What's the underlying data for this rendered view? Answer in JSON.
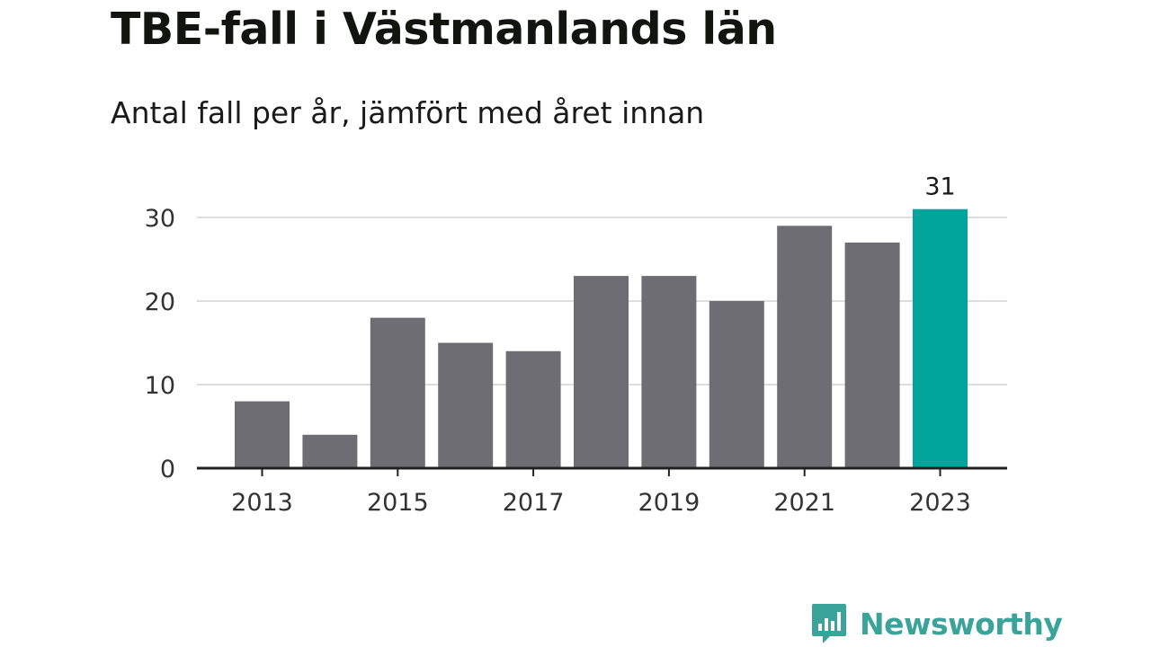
{
  "header": {
    "title": "TBE-fall i Västmanlands län",
    "subtitle": "Antal fall per år, jämfört med året innan"
  },
  "brand": {
    "name": "Newsworthy",
    "logo_icon": "bar-chart-speech-bubble-icon"
  },
  "colors": {
    "bar": "#6e6d73",
    "highlight": "#00a49a",
    "grid": "#dddddd",
    "axis": "#222222",
    "brand": "#3aa39a"
  },
  "chart_data": {
    "type": "bar",
    "categories": [
      "2013",
      "2014",
      "2015",
      "2016",
      "2017",
      "2018",
      "2019",
      "2020",
      "2021",
      "2022",
      "2023"
    ],
    "values": [
      8,
      4,
      18,
      15,
      14,
      23,
      23,
      20,
      29,
      27,
      31
    ],
    "x_tick_labels": [
      "2013",
      "2015",
      "2017",
      "2019",
      "2021",
      "2023"
    ],
    "y_ticks": [
      0,
      10,
      20,
      30
    ],
    "ylim": [
      0,
      33
    ],
    "highlight_category": "2023",
    "value_labels": [
      {
        "category": "2023",
        "text": "31"
      }
    ],
    "grid": true,
    "legend": "none"
  }
}
